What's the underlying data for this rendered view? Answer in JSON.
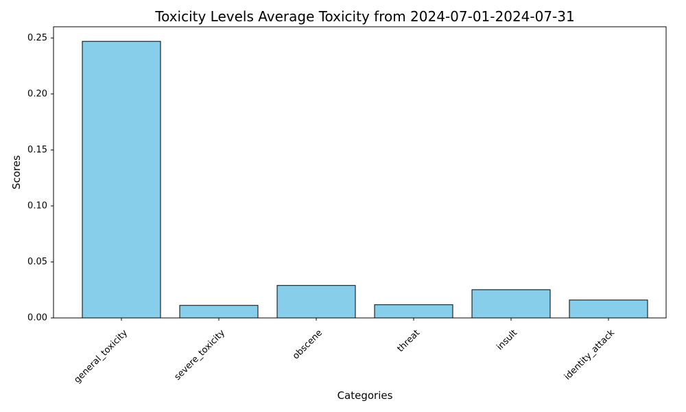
{
  "chart_data": {
    "type": "bar",
    "title": "Toxicity Levels Average Toxicity from 2024-07-01-2024-07-31",
    "xlabel": "Categories",
    "ylabel": "Scores",
    "categories": [
      "general_toxicity",
      "severe_toxicity",
      "obscene",
      "threat",
      "insult",
      "identity_attack"
    ],
    "values": [
      0.247,
      0.0112,
      0.029,
      0.0118,
      0.0252,
      0.016
    ],
    "ylim": [
      0,
      0.26
    ],
    "yticks": [
      "0.00",
      "0.05",
      "0.10",
      "0.15",
      "0.20",
      "0.25"
    ],
    "grid": false,
    "bar_color": "#87ceeb",
    "bar_edge_color": "#000000"
  }
}
